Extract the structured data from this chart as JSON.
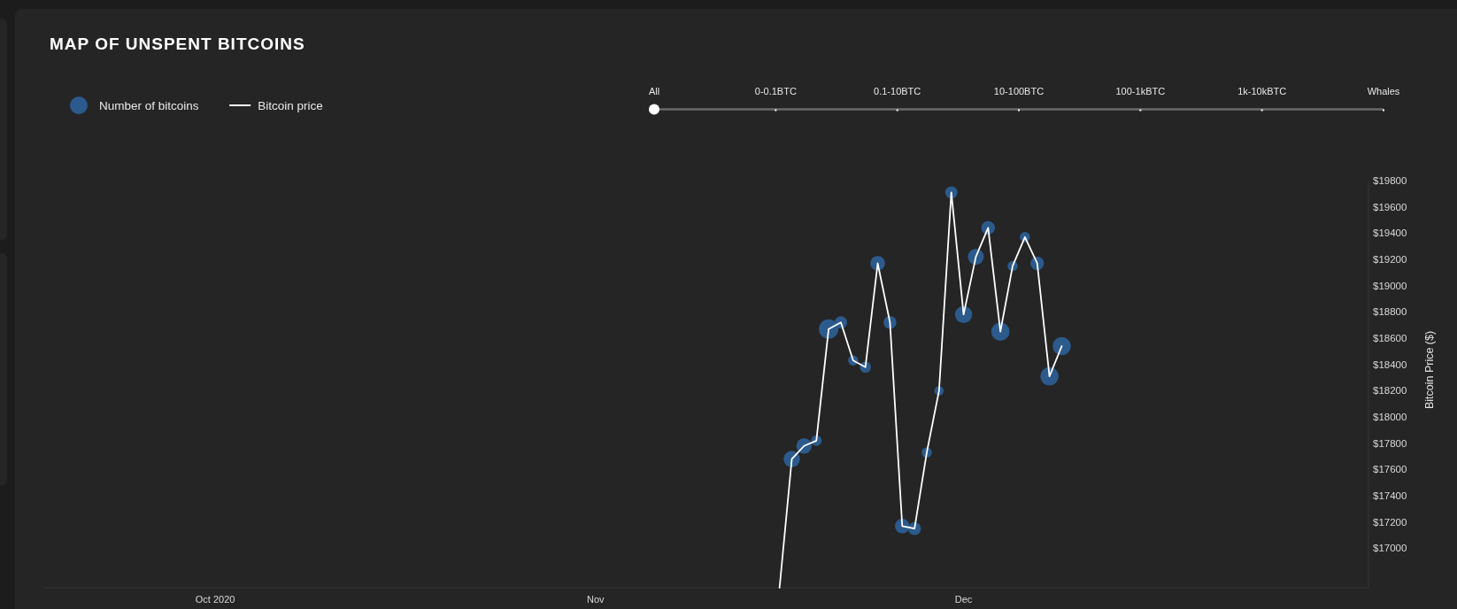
{
  "chart_data": {
    "type": "bubble",
    "title": "MAP OF UNSPENT BITCOINS",
    "series": [
      {
        "name": "Number of bitcoins",
        "type": "bubble",
        "color": "#2c5a8c",
        "x": [
          "2020-11-17",
          "2020-11-18",
          "2020-11-19",
          "2020-11-20",
          "2020-11-21",
          "2020-11-22",
          "2020-11-23",
          "2020-11-24",
          "2020-11-25",
          "2020-11-26",
          "2020-11-27",
          "2020-11-28",
          "2020-11-29",
          "2020-11-30",
          "2020-12-01",
          "2020-12-02",
          "2020-12-03",
          "2020-12-04",
          "2020-12-05",
          "2020-12-06",
          "2020-12-07",
          "2020-12-08",
          "2020-12-09"
        ],
        "values": [
          17680,
          17780,
          17820,
          18670,
          18720,
          18430,
          18380,
          19170,
          18720,
          17170,
          17150,
          17730,
          18200,
          19710,
          18780,
          19220,
          19440,
          18650,
          19150,
          19370,
          19170,
          18310,
          18540
        ],
        "sizes": [
          0.71,
          0.63,
          0.3,
          1,
          0.4,
          0.27,
          0.33,
          0.57,
          0.44,
          0.57,
          0.44,
          0.27,
          0.23,
          0.4,
          0.78,
          0.67,
          0.49,
          0.88,
          0.27,
          0.27,
          0.49,
          0.88,
          0.88
        ]
      },
      {
        "name": "Bitcoin price",
        "type": "line",
        "color": "#ffffff",
        "x": [
          "2020-11-16",
          "2020-11-17",
          "2020-11-18",
          "2020-11-19",
          "2020-11-20",
          "2020-11-21",
          "2020-11-22",
          "2020-11-23",
          "2020-11-24",
          "2020-11-25",
          "2020-11-26",
          "2020-11-27",
          "2020-11-28",
          "2020-11-29",
          "2020-11-30",
          "2020-12-01",
          "2020-12-02",
          "2020-12-03",
          "2020-12-04",
          "2020-12-05",
          "2020-12-06",
          "2020-12-07",
          "2020-12-08",
          "2020-12-09"
        ],
        "values": [
          16700,
          17680,
          17780,
          17820,
          18670,
          18720,
          18430,
          18380,
          19170,
          18720,
          17170,
          17150,
          17730,
          18200,
          19710,
          18780,
          19220,
          19440,
          18650,
          19150,
          19370,
          19170,
          18310,
          18540
        ]
      }
    ],
    "xlim": [
      "2020-09-17",
      "2021-01-03"
    ],
    "xticks": [
      {
        "value": "2020-10-01",
        "label": "Oct 2020"
      },
      {
        "value": "2020-11-01",
        "label": "Nov"
      },
      {
        "value": "2020-12-01",
        "label": "Dec"
      }
    ],
    "ylim": [
      16700,
      19800
    ],
    "yticks": [
      {
        "value": 17000,
        "label": "$17000"
      },
      {
        "value": 17200,
        "label": "$17200"
      },
      {
        "value": 17400,
        "label": "$17400"
      },
      {
        "value": 17600,
        "label": "$17600"
      },
      {
        "value": 17800,
        "label": "$17800"
      },
      {
        "value": 18000,
        "label": "$18000"
      },
      {
        "value": 18200,
        "label": "$18200"
      },
      {
        "value": 18400,
        "label": "$18400"
      },
      {
        "value": 18600,
        "label": "$18600"
      },
      {
        "value": 18800,
        "label": "$18800"
      },
      {
        "value": 19000,
        "label": "$19000"
      },
      {
        "value": 19200,
        "label": "$19200"
      },
      {
        "value": 19400,
        "label": "$19400"
      },
      {
        "value": 19600,
        "label": "$19600"
      },
      {
        "value": 19800,
        "label": "$19800"
      }
    ],
    "ylabel": "Bitcoin Price ($)",
    "legend": "top left",
    "annotations": [
      "All",
      "0-0.1BTC",
      "0.1-10BTC",
      "10-100BTC",
      "100-1kBTC",
      "1k-10kBTC",
      "Whales"
    ]
  }
}
